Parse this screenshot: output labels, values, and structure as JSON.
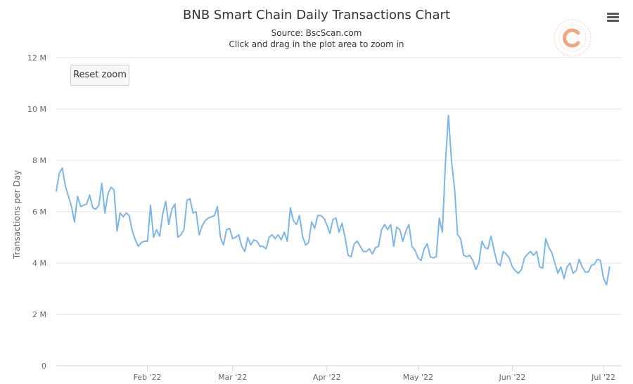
{
  "header": {
    "title": "BNB Smart Chain Daily Transactions Chart",
    "source": "Source: BscScan.com",
    "hint": "Click and drag in the plot area to zoom in"
  },
  "controls": {
    "reset_zoom_label": "Reset zoom",
    "menu_icon": "hamburger-menu-icon"
  },
  "colors": {
    "series": "#7cb5ec",
    "grid": "#e6e6e6",
    "axis_text": "#666666",
    "logo": "#f5c6a8"
  },
  "chart_data": {
    "type": "line",
    "title": "BNB Smart Chain Daily Transactions Chart",
    "subtitle": "Source: BscScan.com",
    "ylabel": "Transactions per Day",
    "xlabel": "",
    "ylim": [
      0,
      12000000
    ],
    "yticks": [
      0,
      2000000,
      4000000,
      6000000,
      8000000,
      10000000,
      12000000
    ],
    "ytick_labels": [
      "0",
      "2 M",
      "4 M",
      "6 M",
      "8 M",
      "10 M",
      "12 M"
    ],
    "xlim": [
      "2022-01-02",
      "2022-07-07"
    ],
    "xticks": [
      "2022-02-01",
      "2022-03-01",
      "2022-04-01",
      "2022-05-01",
      "2022-06-01",
      "2022-07-01"
    ],
    "xtick_labels": [
      "Feb '22",
      "Mar '22",
      "Apr '22",
      "May '22",
      "Jun '22",
      "Jul '22"
    ],
    "grid": true,
    "legend": "none",
    "series": [
      {
        "name": "",
        "x_start": "2022-01-02",
        "x_step_days": 1,
        "values": [
          6800000,
          7500000,
          7700000,
          7000000,
          6600000,
          6200000,
          5600000,
          6600000,
          6200000,
          6250000,
          6300000,
          6650000,
          6150000,
          6100000,
          6250000,
          7100000,
          5950000,
          6700000,
          6950000,
          6850000,
          5250000,
          5950000,
          5800000,
          5950000,
          5850000,
          5250000,
          4900000,
          4650000,
          4800000,
          4850000,
          4850000,
          6250000,
          5000000,
          5300000,
          5050000,
          5900000,
          6400000,
          5500000,
          6100000,
          6300000,
          5000000,
          5100000,
          5300000,
          6450000,
          6500000,
          5950000,
          6000000,
          5100000,
          5450000,
          5650000,
          5750000,
          5800000,
          5850000,
          6200000,
          5000000,
          4700000,
          5300000,
          5350000,
          4950000,
          5000000,
          5100000,
          4650000,
          4450000,
          5000000,
          4700000,
          4900000,
          4850000,
          4650000,
          4650000,
          4550000,
          5000000,
          5100000,
          4950000,
          5100000,
          4900000,
          5200000,
          4850000,
          6150000,
          5650000,
          5500000,
          5850000,
          5050000,
          4700000,
          4800000,
          5600000,
          5350000,
          5850000,
          5850000,
          5750000,
          5500000,
          5150000,
          5700000,
          5750000,
          5200000,
          5550000,
          5000000,
          4300000,
          4250000,
          4750000,
          4850000,
          4650000,
          4450000,
          4450000,
          4550000,
          4350000,
          4600000,
          4650000,
          5300000,
          5500000,
          5300000,
          5500000,
          4650000,
          5400000,
          5300000,
          4850000,
          5250000,
          5500000,
          4650000,
          4500000,
          4200000,
          4100000,
          4550000,
          4750000,
          4250000,
          4200000,
          4250000,
          5750000,
          5200000,
          7900000,
          9750000,
          8000000,
          6900000,
          5100000,
          4950000,
          4300000,
          4250000,
          4300000,
          4100000,
          3750000,
          4000000,
          4850000,
          4600000,
          4550000,
          5050000,
          4500000,
          4000000,
          3900000,
          4450000,
          4350000,
          4200000,
          3850000,
          3700000,
          3600000,
          3750000,
          4200000,
          4350000,
          4450000,
          4300000,
          4450000,
          3850000,
          3800000,
          4950000,
          4600000,
          4400000,
          4000000,
          3600000,
          3850000,
          3400000,
          3850000,
          4000000,
          3600000,
          3700000,
          4150000,
          3850000,
          3650000,
          3650000,
          3900000,
          3950000,
          4150000,
          4100000,
          3400000,
          3150000,
          3850000
        ]
      }
    ]
  }
}
